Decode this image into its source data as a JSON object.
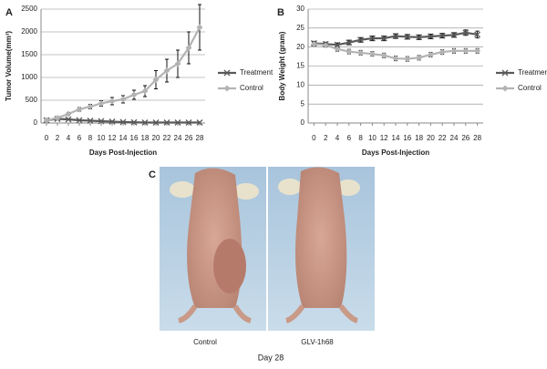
{
  "chart_data": [
    {
      "type": "line",
      "panel_label": "A",
      "y_label": "Tumor Volume(mm³)",
      "x_label": "Days Post-Injection",
      "x": [
        0,
        2,
        4,
        6,
        8,
        10,
        12,
        14,
        16,
        18,
        20,
        22,
        24,
        26,
        28
      ],
      "xlim": [
        -1,
        29
      ],
      "xticks": [
        0,
        2,
        4,
        6,
        8,
        10,
        12,
        14,
        16,
        18,
        20,
        22,
        24,
        26,
        28
      ],
      "ylim": [
        0,
        2500
      ],
      "yticks": [
        0,
        500,
        1000,
        1500,
        2000,
        2500
      ],
      "grid": true,
      "legend": "right",
      "series": [
        {
          "name": "Treatment",
          "color": "#595959",
          "marker": "x",
          "values": [
            60,
            90,
            80,
            60,
            50,
            40,
            30,
            20,
            15,
            10,
            10,
            10,
            10,
            10,
            10
          ]
        },
        {
          "name": "Control",
          "color": "#b3b3b3",
          "marker": "diamond",
          "values": [
            60,
            110,
            200,
            300,
            360,
            430,
            480,
            520,
            620,
            700,
            950,
            1150,
            1300,
            1650,
            2100
          ],
          "errors": [
            20,
            20,
            30,
            40,
            50,
            60,
            80,
            80,
            100,
            120,
            200,
            250,
            300,
            350,
            500
          ]
        }
      ]
    },
    {
      "type": "line",
      "panel_label": "B",
      "y_label": "Body Weight (gram)",
      "x_label": "Days Post-Injection",
      "x": [
        0,
        2,
        4,
        6,
        8,
        10,
        12,
        14,
        16,
        18,
        20,
        22,
        24,
        26,
        28
      ],
      "xlim": [
        -1,
        29
      ],
      "xticks": [
        0,
        2,
        4,
        6,
        8,
        10,
        12,
        14,
        16,
        18,
        20,
        22,
        24,
        26,
        28
      ],
      "ylim": [
        0,
        30
      ],
      "yticks": [
        0,
        5,
        10,
        15,
        20,
        25,
        30
      ],
      "grid": true,
      "legend": "right",
      "series": [
        {
          "name": "Treatment",
          "color": "#595959",
          "marker": "x",
          "values": [
            21,
            20.8,
            20.6,
            21.2,
            21.9,
            22.3,
            22.3,
            22.9,
            22.7,
            22.6,
            22.8,
            23,
            23.2,
            23.8,
            23.3
          ],
          "errors": [
            0.5,
            0.5,
            0.5,
            0.6,
            0.6,
            0.6,
            0.6,
            0.6,
            0.6,
            0.6,
            0.6,
            0.6,
            0.6,
            0.7,
            0.9
          ]
        },
        {
          "name": "Control",
          "color": "#b3b3b3",
          "marker": "diamond",
          "values": [
            20.8,
            20.5,
            19.5,
            18.8,
            18.5,
            18.2,
            17.8,
            17,
            16.9,
            17.2,
            18,
            18.7,
            19,
            19,
            19
          ],
          "errors": [
            0.5,
            0.5,
            0.6,
            0.6,
            0.6,
            0.6,
            0.6,
            0.6,
            0.6,
            0.6,
            0.6,
            0.6,
            0.6,
            0.6,
            0.6
          ]
        }
      ]
    }
  ],
  "panel_c": {
    "label": "C",
    "captions": [
      "Control",
      "GLV-1h68"
    ],
    "footer": "Day 28"
  }
}
